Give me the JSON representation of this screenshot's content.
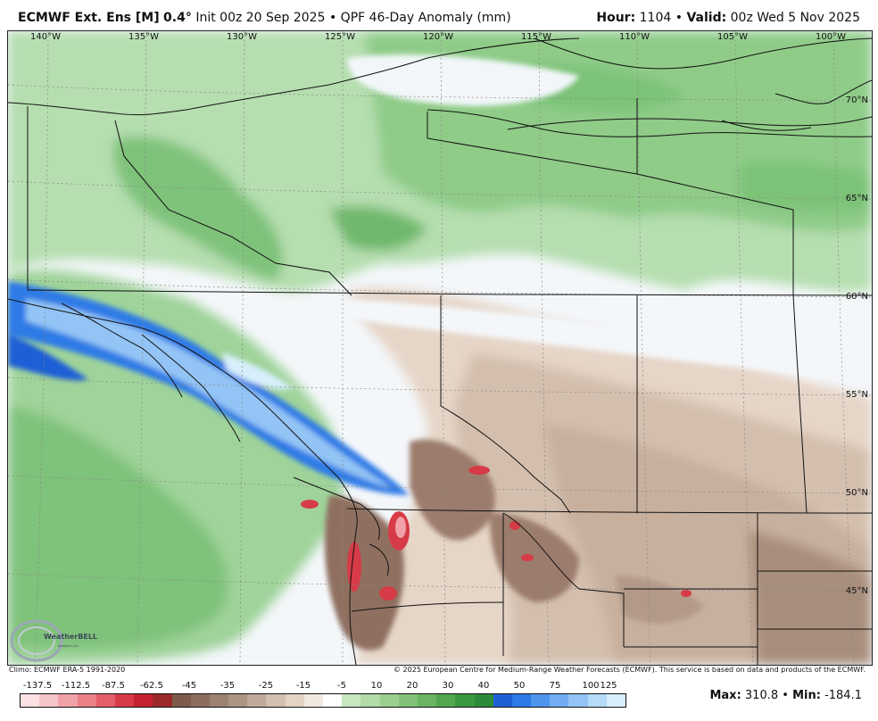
{
  "header": {
    "model": "ECMWF Ext. Ens [M]",
    "resolution": "0.4°",
    "init_prefix": "Init",
    "init": "00z 20 Sep 2025",
    "separator": "•",
    "product": "QPF 46-Day Anomaly (mm)",
    "hour_label": "Hour:",
    "hour": "1104",
    "valid_label": "Valid:",
    "valid": "00z Wed 5 Nov 2025"
  },
  "map": {
    "lon_labels": [
      "140°W",
      "135°W",
      "130°W",
      "125°W",
      "120°W",
      "115°W",
      "110°W",
      "105°W",
      "100°W"
    ],
    "lat_labels": [
      "70°N",
      "65°N",
      "60°N",
      "55°N",
      "50°N",
      "45°N"
    ],
    "logo_text": "WeatherBELL",
    "logo_subtext": "Analytics LLC"
  },
  "footer": {
    "climo": "Climo: ECMWF ERA-5 1991-2020",
    "copyright": "© 2025 European Centre for Medium-Range Weather Forecasts (ECMWF). This service is based on data and products of the ECMWF."
  },
  "legend": {
    "labels": [
      "-137.5",
      "-112.5",
      "-87.5",
      "-62.5",
      "-45",
      "-35",
      "-25",
      "-15",
      "-5",
      "10",
      "20",
      "30",
      "40",
      "50",
      "75",
      "100",
      "125"
    ],
    "colors": [
      "#fbe1e3",
      "#f6c5c9",
      "#f1a2a8",
      "#eb8088",
      "#e35e68",
      "#d63b47",
      "#c42230",
      "#9c2a2a",
      "#7e5a4c",
      "#8b6d5f",
      "#9b8172",
      "#ad9585",
      "#bfa99a",
      "#d2bfb0",
      "#e3d4c6",
      "#f1e8df",
      "#ffffff",
      "#c8e6c0",
      "#b2dba8",
      "#9acf90",
      "#82c278",
      "#6ab463",
      "#52a650",
      "#3a9840",
      "#2c8a38",
      "#1e5fd6",
      "#2e7ae6",
      "#4f95ee",
      "#72adf2",
      "#93c4f5",
      "#b5dbf8",
      "#d7effb"
    ],
    "max_label": "Max:",
    "max": "310.8",
    "min_label": "Min:",
    "min": "-184.1",
    "separator": "•"
  }
}
